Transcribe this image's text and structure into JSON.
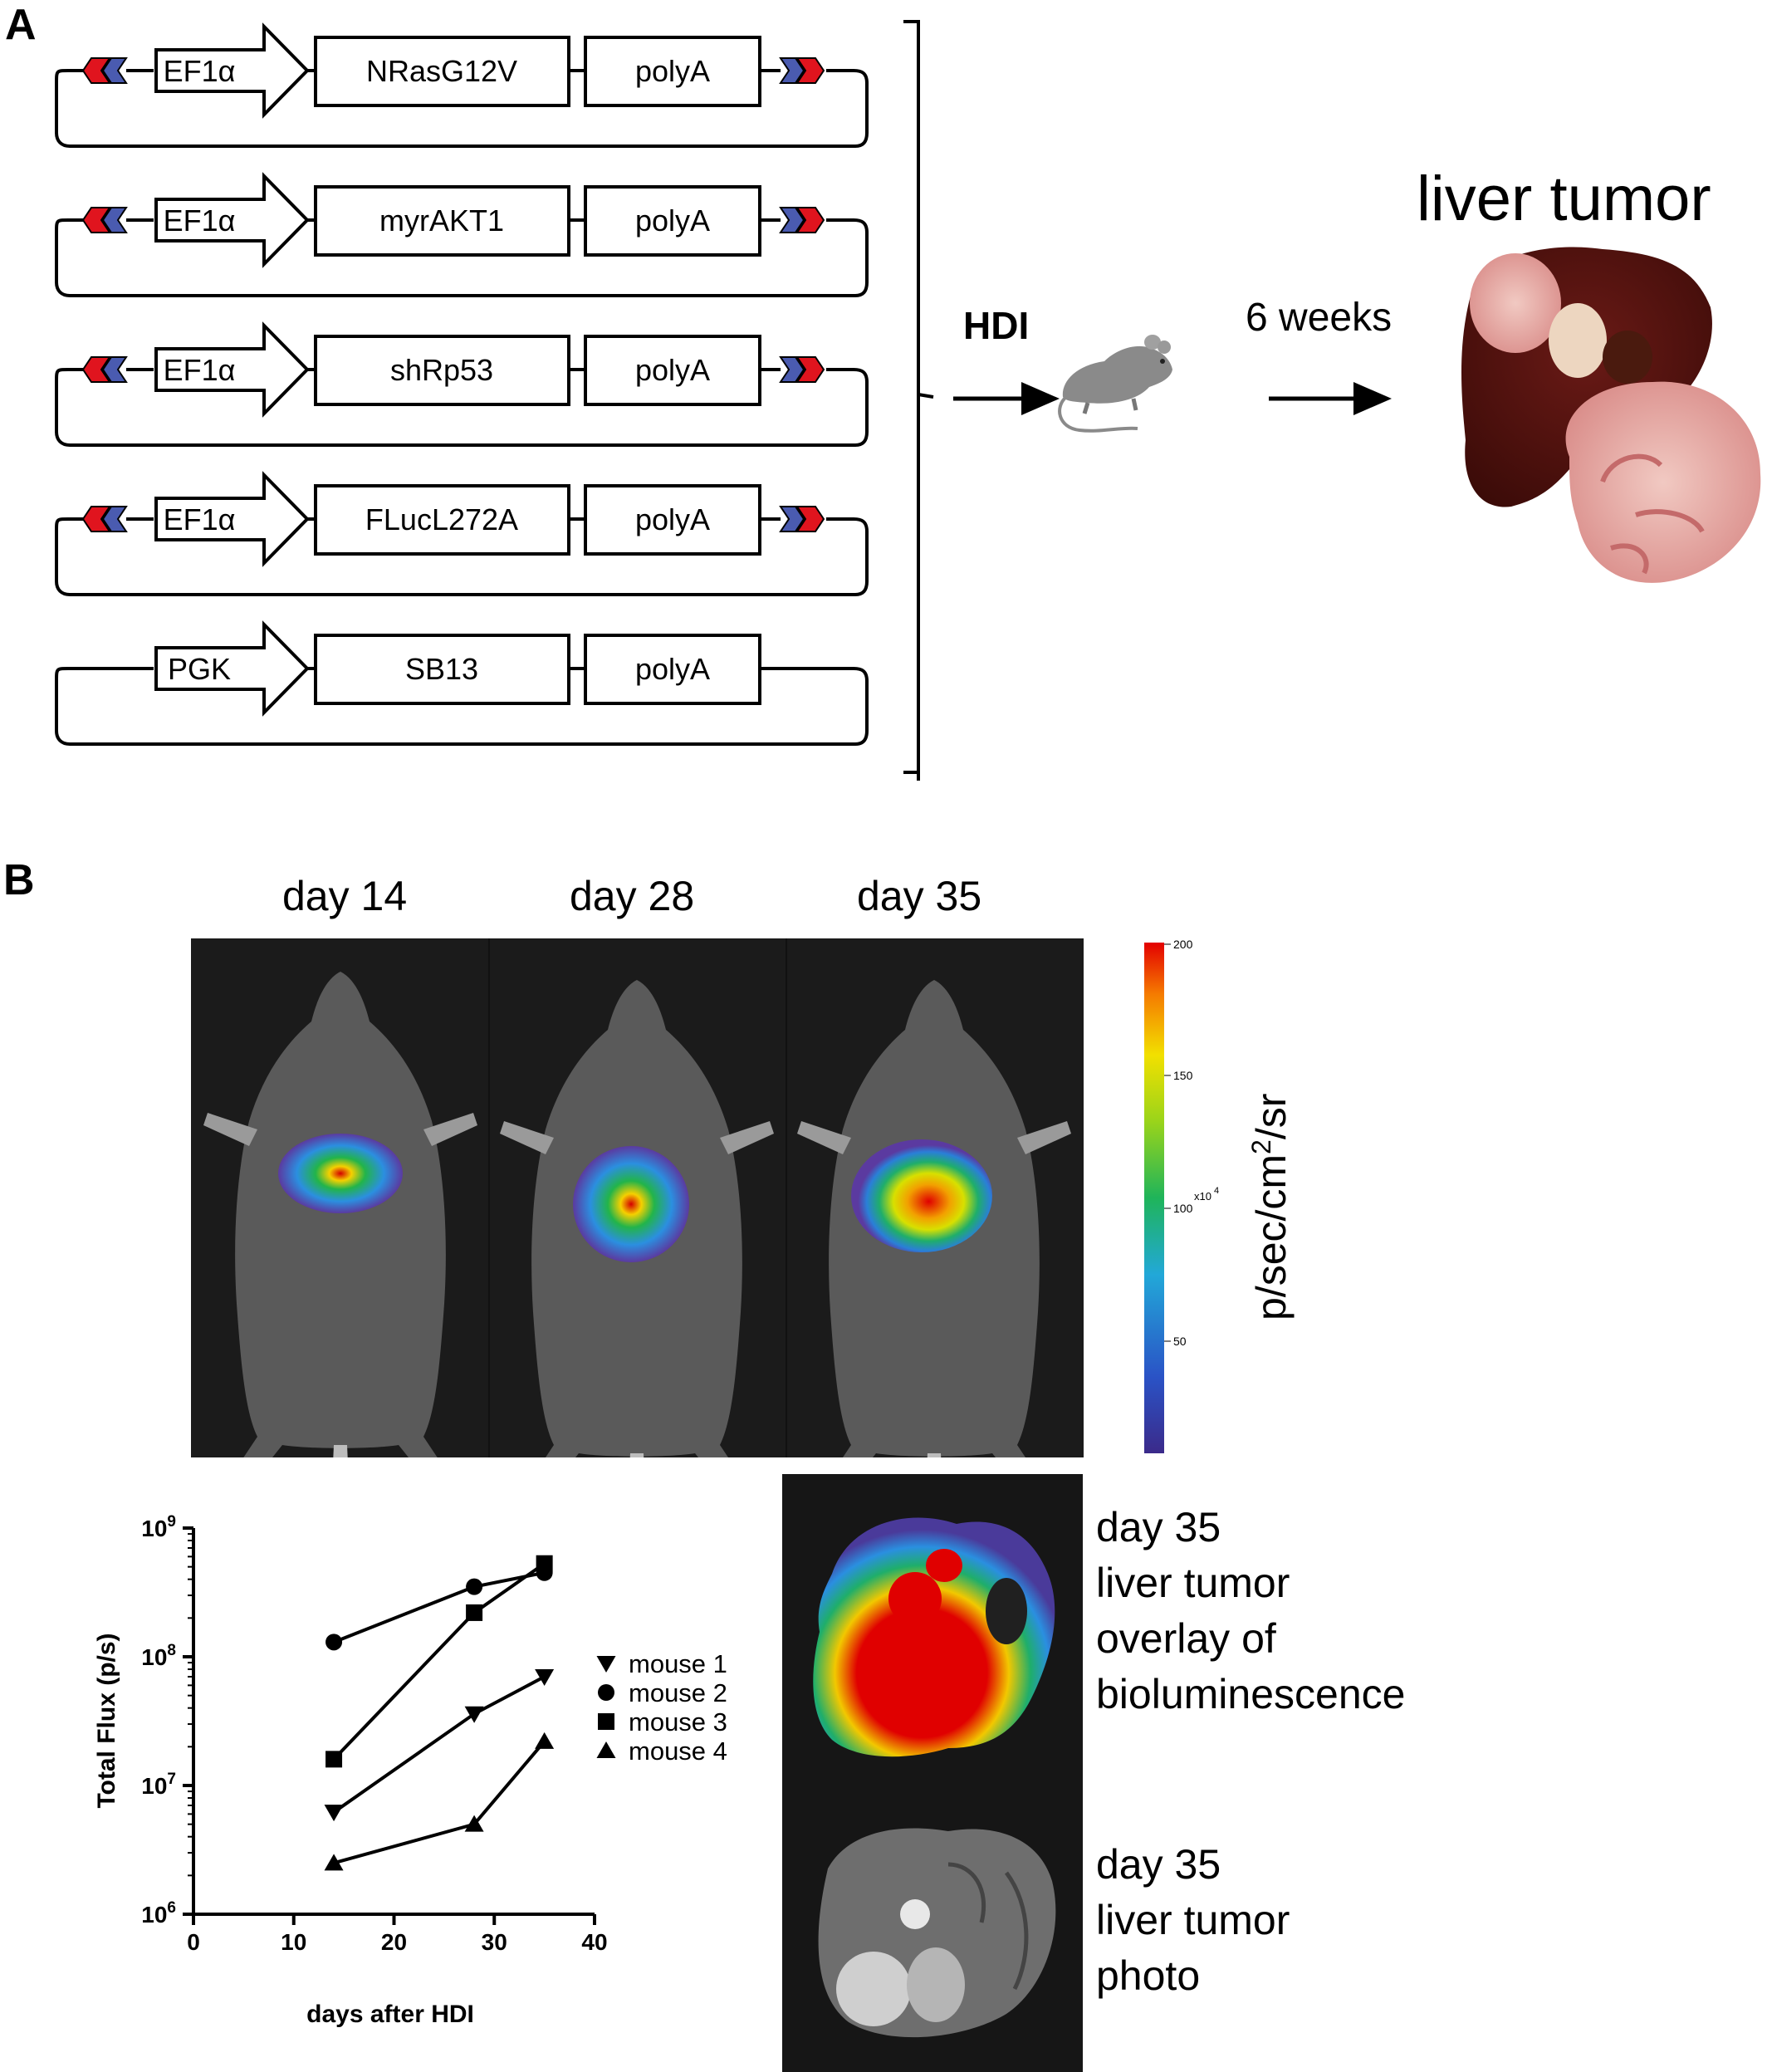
{
  "panel_a": {
    "letter": "A",
    "plasmids": [
      {
        "promoter": "EF1α",
        "gene": "NRasG12V",
        "terminator": "polyA",
        "has_irdr": true
      },
      {
        "promoter": "EF1α",
        "gene": "myrAKT1",
        "terminator": "polyA",
        "has_irdr": true
      },
      {
        "promoter": "EF1α",
        "gene": "shRp53",
        "terminator": "polyA",
        "has_irdr": true
      },
      {
        "promoter": "EF1α",
        "gene": "FLucL272A",
        "terminator": "polyA",
        "has_irdr": true
      },
      {
        "promoter": "PGK",
        "gene": "SB13",
        "terminator": "polyA",
        "has_irdr": false
      }
    ],
    "hdi_label": "HDI",
    "weeks_label": "6 weeks",
    "liver_title": "liver tumor",
    "colors": {
      "irdr_red": "#e0141e",
      "irdr_blue": "#4a5bb0"
    }
  },
  "panel_b": {
    "letter": "B",
    "day_labels": [
      "day 14",
      "day 28",
      "day 35"
    ],
    "colorbar": {
      "label_main": "p/sec/cm",
      "label_sup": "2",
      "label_end": "/sr",
      "ticks": [
        "200",
        "150",
        "100",
        "50"
      ],
      "multiplier": "x10",
      "multiplier_exp": "4"
    },
    "overlay_text": [
      "day 35",
      "liver tumor",
      "overlay of",
      "bioluminescence"
    ],
    "photo_text": [
      "day 35",
      "liver tumor",
      "photo"
    ]
  },
  "chart_data": {
    "type": "line",
    "ylabel": "Total Flux (p/s)",
    "xlabel": "days after HDI",
    "xlim": [
      0,
      40
    ],
    "xticks": [
      "0",
      "10",
      "20",
      "30",
      "40"
    ],
    "ylim_log10": [
      6,
      9
    ],
    "yticks": [
      {
        "base": "10",
        "exp": "6"
      },
      {
        "base": "10",
        "exp": "7"
      },
      {
        "base": "10",
        "exp": "8"
      },
      {
        "base": "10",
        "exp": "9"
      }
    ],
    "y_scale": "log",
    "legend_position": "right",
    "series": [
      {
        "name": "mouse 1",
        "marker": "triangle-down",
        "x": [
          14,
          28,
          35
        ],
        "y": [
          6200000,
          36000000,
          70000000
        ]
      },
      {
        "name": "mouse 2",
        "marker": "circle",
        "x": [
          14,
          28,
          35
        ],
        "y": [
          130000000,
          350000000,
          450000000
        ]
      },
      {
        "name": "mouse 3",
        "marker": "square",
        "x": [
          14,
          28,
          35
        ],
        "y": [
          16000000,
          220000000,
          530000000
        ]
      },
      {
        "name": "mouse 4",
        "marker": "triangle-up",
        "x": [
          14,
          28,
          35
        ],
        "y": [
          2500000,
          5000000,
          22000000
        ]
      }
    ]
  }
}
